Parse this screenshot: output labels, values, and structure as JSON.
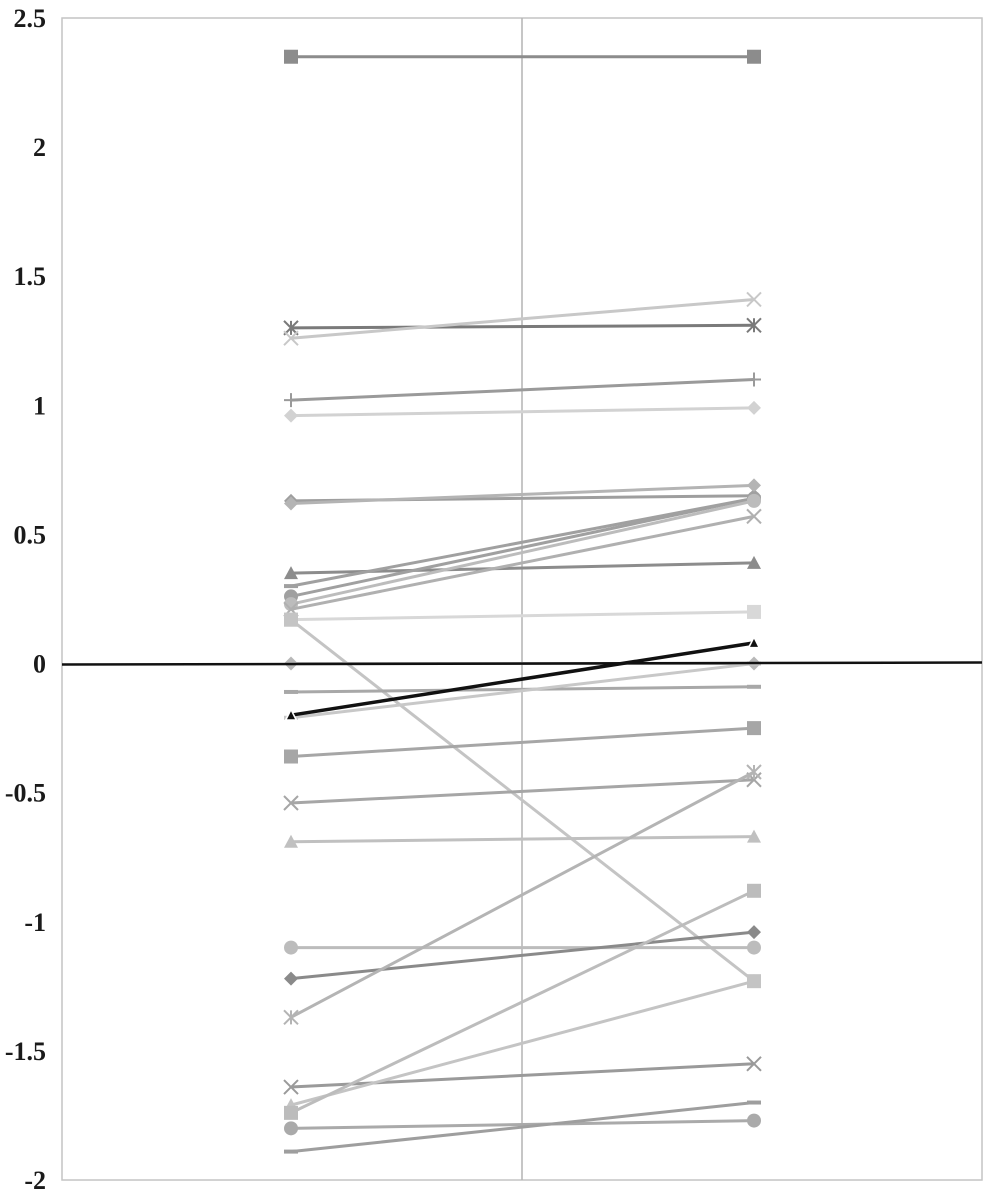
{
  "chart_data": {
    "type": "line",
    "title": "",
    "xlabel": "",
    "ylabel": "",
    "ylim": [
      -2,
      2.5
    ],
    "y_ticks": [
      "2.5",
      "2",
      "1.5",
      "1",
      "0.5",
      "0",
      "-0.5",
      "-1",
      "-1.5",
      "-2"
    ],
    "y_tick_values": [
      2.5,
      2,
      1.5,
      1,
      0.5,
      0,
      -0.5,
      -1,
      -1.5,
      -2
    ],
    "x_points": 2,
    "grid": "one vertical center gridline",
    "legend": "none",
    "reference_line": {
      "y": 0,
      "color": "#111111"
    },
    "series": [
      {
        "values": [
          2.35,
          2.35
        ],
        "marker": "square",
        "color": "#8c8c8c"
      },
      {
        "values": [
          1.3,
          1.31
        ],
        "marker": "asterisk",
        "color": "#7a7a7a"
      },
      {
        "values": [
          1.26,
          1.41
        ],
        "marker": "x",
        "color": "#c8c8c8"
      },
      {
        "values": [
          1.02,
          1.1
        ],
        "marker": "plus",
        "color": "#9a9a9a"
      },
      {
        "values": [
          0.96,
          0.99
        ],
        "marker": "diamond",
        "color": "#d2d2d2"
      },
      {
        "values": [
          0.63,
          0.65
        ],
        "marker": "diamond",
        "color": "#9e9e9e"
      },
      {
        "values": [
          0.62,
          0.69
        ],
        "marker": "diamond",
        "color": "#b4b4b4"
      },
      {
        "values": [
          0.35,
          0.39
        ],
        "marker": "triangle",
        "color": "#8c8c8c"
      },
      {
        "values": [
          0.3,
          0.64
        ],
        "marker": "line",
        "color": "#a0a0a0"
      },
      {
        "values": [
          0.26,
          0.64
        ],
        "marker": "circle",
        "color": "#a0a0a0"
      },
      {
        "values": [
          0.23,
          0.63
        ],
        "marker": "circle",
        "color": "#bcbcbc"
      },
      {
        "values": [
          0.21,
          0.57
        ],
        "marker": "x",
        "color": "#b0b0b0"
      },
      {
        "values": [
          0.17,
          0.2
        ],
        "marker": "square",
        "color": "#d8d8d8"
      },
      {
        "values": [
          0.17,
          -1.23
        ],
        "marker": "square",
        "color": "#c4c4c4"
      },
      {
        "values": [
          0.0,
          0.0
        ],
        "marker": "diamond",
        "color": "#b8b8b8"
      },
      {
        "values": [
          -0.11,
          -0.09
        ],
        "marker": "line",
        "color": "#a8a8a8"
      },
      {
        "values": [
          -0.2,
          0.08
        ],
        "marker": "triangle",
        "color": "#111111",
        "highlight": true
      },
      {
        "values": [
          -0.21,
          0.0
        ],
        "marker": "line",
        "color": "#c8c8c8"
      },
      {
        "values": [
          -0.36,
          -0.25
        ],
        "marker": "square",
        "color": "#a6a6a6"
      },
      {
        "values": [
          -0.54,
          -0.45
        ],
        "marker": "x",
        "color": "#a6a6a6"
      },
      {
        "values": [
          -0.69,
          -0.67
        ],
        "marker": "triangle",
        "color": "#c0c0c0"
      },
      {
        "values": [
          -1.1,
          -1.1
        ],
        "marker": "circle",
        "color": "#bcbcbc"
      },
      {
        "values": [
          -1.22,
          -1.04
        ],
        "marker": "diamond",
        "color": "#8a8a8a"
      },
      {
        "values": [
          -1.37,
          -0.42
        ],
        "marker": "asterisk",
        "color": "#b4b4b4"
      },
      {
        "values": [
          -1.64,
          -1.55
        ],
        "marker": "x",
        "color": "#9a9a9a"
      },
      {
        "values": [
          -1.71,
          -1.23
        ],
        "marker": "triangle",
        "color": "#c4c4c4"
      },
      {
        "values": [
          -1.74,
          -0.88
        ],
        "marker": "square",
        "color": "#bcbcbc"
      },
      {
        "values": [
          -1.8,
          -1.77
        ],
        "marker": "circle",
        "color": "#aaaaaa"
      },
      {
        "values": [
          -1.89,
          -1.7
        ],
        "marker": "line",
        "color": "#9e9e9e"
      }
    ]
  }
}
